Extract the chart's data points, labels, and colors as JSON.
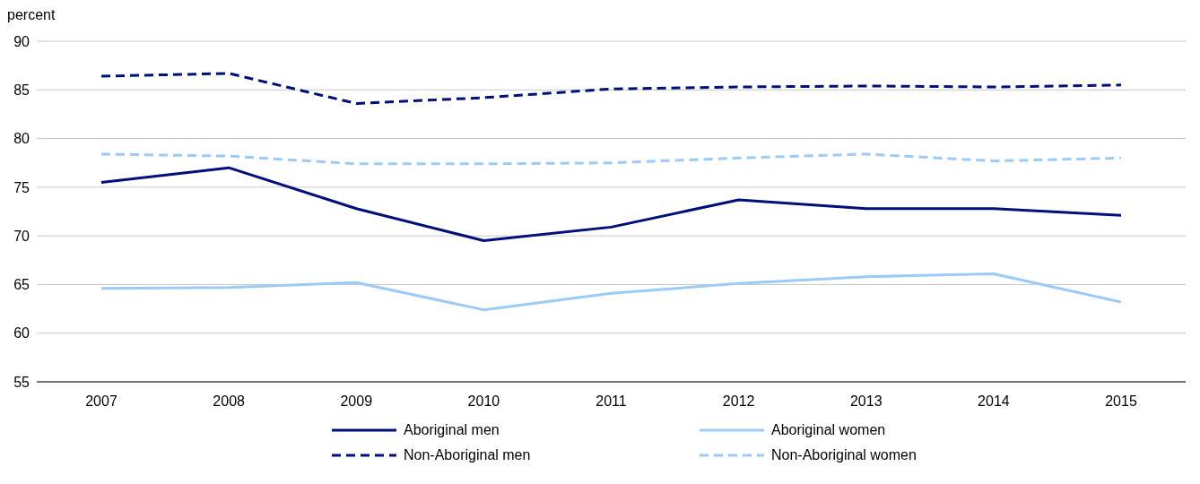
{
  "chart_data": {
    "type": "line",
    "ylabel": "percent",
    "categories": [
      "2007",
      "2008",
      "2009",
      "2010",
      "2011",
      "2012",
      "2013",
      "2014",
      "2015"
    ],
    "ylim": [
      55,
      90
    ],
    "yticks": [
      55,
      60,
      65,
      70,
      75,
      80,
      85,
      90
    ],
    "grid": "y",
    "legend": "bottom",
    "marker": "none",
    "series": [
      {
        "name": "Aboriginal men",
        "color": "#000f7a",
        "line_style": "solid",
        "values": [
          75.5,
          77.0,
          72.8,
          69.5,
          70.9,
          73.7,
          72.8,
          72.8,
          72.1
        ]
      },
      {
        "name": "Non-Aboriginal men",
        "color": "#000f7a",
        "line_style": "dashed",
        "values": [
          86.4,
          86.7,
          83.6,
          84.2,
          85.1,
          85.3,
          85.4,
          85.3,
          85.5
        ]
      },
      {
        "name": "Aboriginal women",
        "color": "#9ccbf7",
        "line_style": "solid",
        "values": [
          64.6,
          64.7,
          65.2,
          62.4,
          64.1,
          65.1,
          65.8,
          66.1,
          63.2
        ]
      },
      {
        "name": "Non-Aboriginal women",
        "color": "#9ccbf7",
        "line_style": "dashed",
        "values": [
          78.4,
          78.2,
          77.4,
          77.4,
          77.5,
          78.0,
          78.4,
          77.7,
          78.0
        ]
      }
    ]
  }
}
